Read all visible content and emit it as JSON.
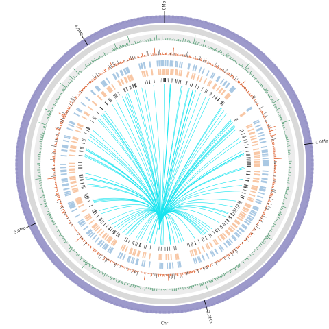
{
  "chart_data": {
    "type": "circos",
    "xlabel": "Chr",
    "xlim": [
      0,
      4.4
    ],
    "xticks": [
      {
        "value": 0,
        "label": "0Mb"
      },
      {
        "value": 1,
        "label": "1.0Mb"
      },
      {
        "value": 2,
        "label": "2.0Mb"
      },
      {
        "value": 3,
        "label": "3.0Mb"
      },
      {
        "value": 4,
        "label": "4.0Mb"
      }
    ]
  }
}
